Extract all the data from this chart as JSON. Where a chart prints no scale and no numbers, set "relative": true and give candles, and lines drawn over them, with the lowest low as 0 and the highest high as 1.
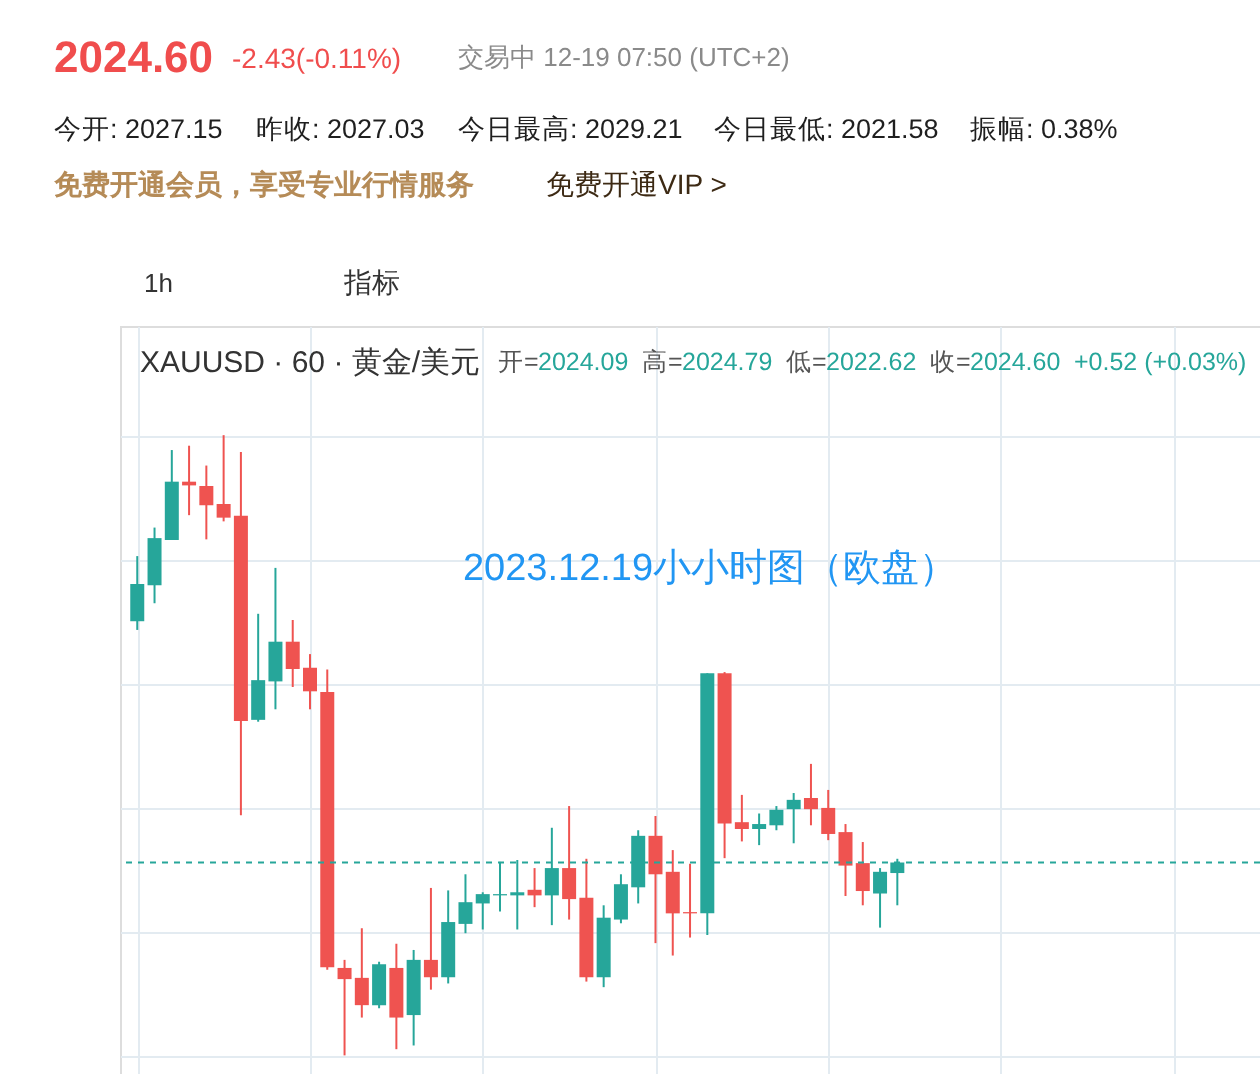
{
  "chart_data": {
    "type": "candlestick",
    "title": "2023.12.19小小时图（欧盘）",
    "relative": true,
    "categories": [
      null,
      null,
      null,
      null,
      null,
      null,
      null,
      null,
      null,
      null,
      null,
      null,
      null,
      null,
      null,
      null,
      null,
      null,
      null,
      null,
      null,
      null,
      null,
      null,
      null,
      null,
      null,
      null,
      null,
      null,
      null,
      null,
      null,
      null,
      null,
      null,
      null,
      null,
      null,
      null,
      null,
      null,
      null,
      null,
      null
    ],
    "ohlc": [
      [
        0.7,
        0.805,
        0.686,
        0.76
      ],
      [
        0.758,
        0.851,
        0.729,
        0.834
      ],
      [
        0.831,
        0.976,
        0.831,
        0.925
      ],
      [
        0.925,
        0.983,
        0.871,
        0.919
      ],
      [
        0.918,
        0.951,
        0.832,
        0.887
      ],
      [
        0.889,
        1.0,
        0.861,
        0.867
      ],
      [
        0.87,
        0.973,
        0.387,
        0.539
      ],
      [
        0.541,
        0.712,
        0.538,
        0.605
      ],
      [
        0.603,
        0.786,
        0.558,
        0.667
      ],
      [
        0.667,
        0.702,
        0.594,
        0.623
      ],
      [
        0.625,
        0.647,
        0.558,
        0.587
      ],
      [
        0.586,
        0.622,
        0.138,
        0.142
      ],
      [
        0.141,
        0.154,
        0.0,
        0.123
      ],
      [
        0.125,
        0.205,
        0.061,
        0.081
      ],
      [
        0.081,
        0.151,
        0.076,
        0.147
      ],
      [
        0.141,
        0.18,
        0.01,
        0.061
      ],
      [
        0.065,
        0.17,
        0.016,
        0.154
      ],
      [
        0.154,
        0.27,
        0.106,
        0.126
      ],
      [
        0.126,
        0.266,
        0.116,
        0.215
      ],
      [
        0.212,
        0.292,
        0.197,
        0.247
      ],
      [
        0.245,
        0.263,
        0.203,
        0.26
      ],
      [
        0.258,
        0.312,
        0.232,
        0.26
      ],
      [
        0.258,
        0.315,
        0.203,
        0.263
      ],
      [
        0.267,
        0.302,
        0.239,
        0.258
      ],
      [
        0.258,
        0.367,
        0.21,
        0.302
      ],
      [
        0.302,
        0.402,
        0.219,
        0.252
      ],
      [
        0.254,
        0.317,
        0.119,
        0.126
      ],
      [
        0.126,
        0.242,
        0.11,
        0.222
      ],
      [
        0.219,
        0.292,
        0.213,
        0.276
      ],
      [
        0.271,
        0.363,
        0.245,
        0.354
      ],
      [
        0.354,
        0.386,
        0.181,
        0.292
      ],
      [
        0.296,
        0.331,
        0.161,
        0.229
      ],
      [
        0.231,
        0.309,
        0.19,
        0.229
      ],
      [
        0.229,
        0.616,
        0.194,
        0.616
      ],
      [
        0.616,
        0.618,
        0.318,
        0.374
      ],
      [
        0.376,
        0.42,
        0.345,
        0.365
      ],
      [
        0.365,
        0.39,
        0.339,
        0.373
      ],
      [
        0.371,
        0.402,
        0.363,
        0.396
      ],
      [
        0.397,
        0.423,
        0.342,
        0.412
      ],
      [
        0.415,
        0.47,
        0.371,
        0.397
      ],
      [
        0.399,
        0.428,
        0.347,
        0.357
      ],
      [
        0.36,
        0.373,
        0.257,
        0.306
      ],
      [
        0.31,
        0.344,
        0.242,
        0.265
      ],
      [
        0.261,
        0.302,
        0.206,
        0.296
      ],
      [
        0.294,
        0.317,
        0.242,
        0.311
      ]
    ],
    "colors": [
      "#26a69a",
      "#26a69a",
      "#26a69a",
      "#ef5350",
      "#ef5350",
      "#ef5350",
      "#ef5350",
      "#26a69a",
      "#26a69a",
      "#ef5350",
      "#ef5350",
      "#ef5350",
      "#ef5350",
      "#ef5350",
      "#26a69a",
      "#ef5350",
      "#26a69a",
      "#ef5350",
      "#26a69a",
      "#26a69a",
      "#26a69a",
      "#26a69a",
      "#26a69a",
      "#ef5350",
      "#26a69a",
      "#ef5350",
      "#ef5350",
      "#26a69a",
      "#26a69a",
      "#26a69a",
      "#ef5350",
      "#ef5350",
      "#ef5350",
      "#26a69a",
      "#ef5350",
      "#ef5350",
      "#26a69a",
      "#26a69a",
      "#26a69a",
      "#ef5350",
      "#ef5350",
      "#ef5350",
      "#ef5350",
      "#26a69a",
      "#26a69a"
    ],
    "ref_lines": [
      {
        "axis": "y",
        "value": 0.311,
        "color": "#26a69a",
        "line_style": "dashed"
      }
    ],
    "grid": true,
    "annotations": [
      "2024.60",
      "-2.43(-0.11%)",
      "交易中 12-19 07:50 (UTC+2)",
      "今开: 2027.15",
      "昨收: 2027.03",
      "今日最高: 2029.21",
      "今日最低: 2021.58",
      "振幅: 0.38%",
      "免费开通会员，享受专业行情服务",
      "免费开通VIP >",
      "1h",
      "指标",
      "XAUUSD · 60 · 黄金/美元",
      "开=",
      "2024.09",
      "高=",
      "2024.79",
      "低=",
      "2022.62",
      "收=",
      "2024.60",
      "+0.52 (+0.03%)"
    ]
  }
}
